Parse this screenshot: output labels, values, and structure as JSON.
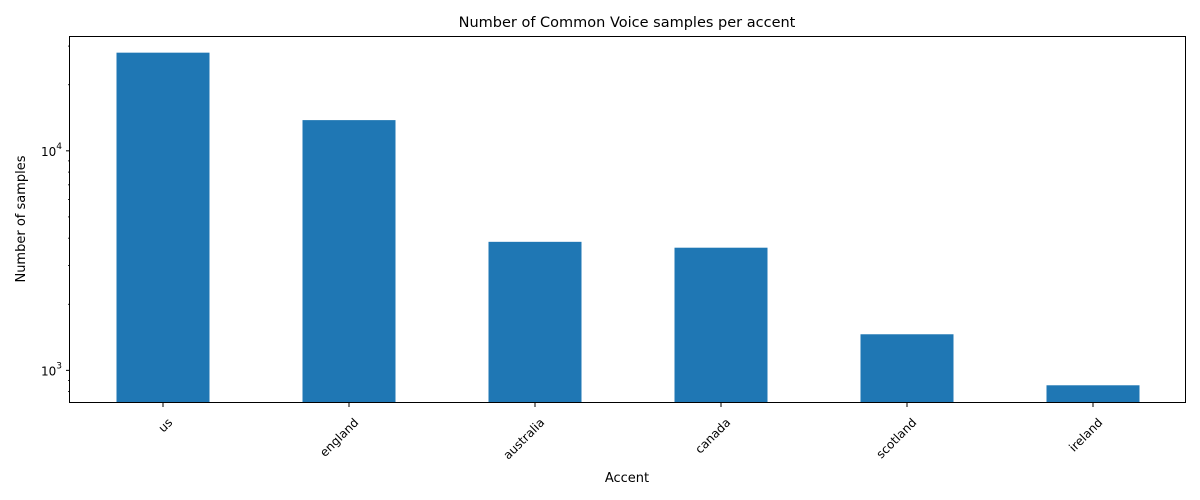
{
  "chart_data": {
    "type": "bar",
    "title": "Number of Common Voice samples per accent",
    "xlabel": "Accent",
    "ylabel": "Number of samples",
    "yscale": "log",
    "ylim": [
      710,
      33000
    ],
    "categories": [
      "us",
      "england",
      "australia",
      "canada",
      "scotland",
      "ireland"
    ],
    "values": [
      28000,
      13800,
      3850,
      3620,
      1460,
      855
    ],
    "y_ticks": [
      {
        "value": 1000,
        "base": "10",
        "exp": "3"
      },
      {
        "value": 10000,
        "base": "10",
        "exp": "4"
      }
    ],
    "x_tick_rotation": "45",
    "bar_color": "#1f77b4",
    "grid": false,
    "legend": false
  }
}
